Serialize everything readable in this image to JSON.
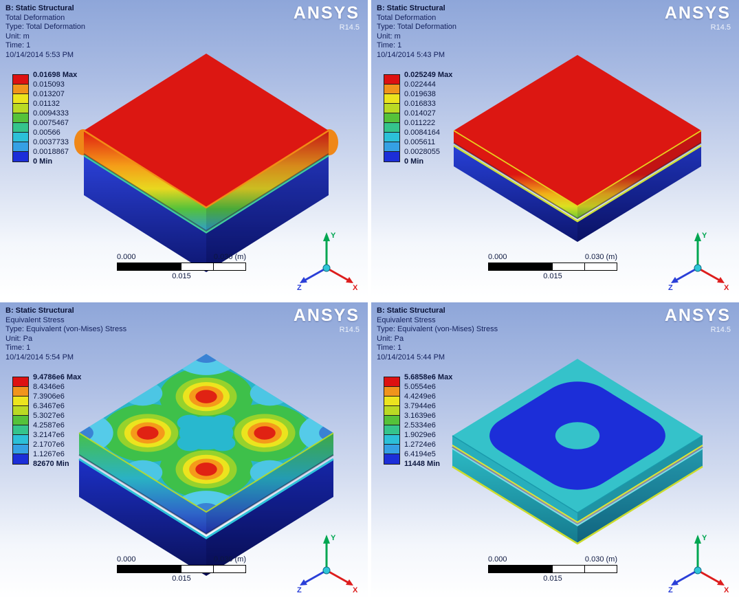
{
  "logo": {
    "brand": "ANSYS",
    "version": "R14.5"
  },
  "legend_colors": [
    "#dd1111",
    "#f0941c",
    "#ece41e",
    "#bada24",
    "#55c23a",
    "#35c48c",
    "#2cc0d8",
    "#35a0e4",
    "#1c2ed8"
  ],
  "triad": {
    "x_label": "X",
    "y_label": "Y",
    "z_label": "Z",
    "x_color": "#dd1d1d",
    "y_color": "#00a651",
    "z_color": "#2a3fd8"
  },
  "panels": [
    {
      "header": {
        "line1": "B: Static Structural",
        "line2": "Total Deformation",
        "line3": "Type: Total Deformation",
        "line4": "Unit: m",
        "line5": "Time: 1",
        "line6": "10/14/2014 5:53 PM"
      },
      "legend_labels": [
        "0.01698 Max",
        "0.015093",
        "0.013207",
        "0.01132",
        "0.0094333",
        "0.0075467",
        "0.00566",
        "0.0037733",
        "0.0018867",
        "0 Min"
      ],
      "scale": {
        "left": "0.000",
        "right": "0.030 (m)",
        "center": "0.015"
      }
    },
    {
      "header": {
        "line1": "B: Static Structural",
        "line2": "Total Deformation",
        "line3": "Type: Total Deformation",
        "line4": "Unit: m",
        "line5": "Time: 1",
        "line6": "10/14/2014 5:43 PM"
      },
      "legend_labels": [
        "0.025249 Max",
        "0.022444",
        "0.019638",
        "0.016833",
        "0.014027",
        "0.011222",
        "0.0084164",
        "0.005611",
        "0.0028055",
        "0 Min"
      ],
      "scale": {
        "left": "0.000",
        "right": "0.030 (m)",
        "center": "0.015"
      }
    },
    {
      "header": {
        "line1": "B: Static Structural",
        "line2": "Equivalent Stress",
        "line3": "Type: Equivalent (von-Mises) Stress",
        "line4": "Unit: Pa",
        "line5": "Time: 1",
        "line6": "10/14/2014 5:54 PM"
      },
      "legend_labels": [
        "9.4786e6 Max",
        "8.4346e6",
        "7.3906e6",
        "6.3467e6",
        "5.3027e6",
        "4.2587e6",
        "3.2147e6",
        "2.1707e6",
        "1.1267e6",
        "82670 Min"
      ],
      "scale": {
        "left": "0.000",
        "right": "0.030 (m)",
        "center": "0.015"
      }
    },
    {
      "header": {
        "line1": "B: Static Structural",
        "line2": "Equivalent Stress",
        "line3": "Type: Equivalent (von-Mises) Stress",
        "line4": "Unit: Pa",
        "line5": "Time: 1",
        "line6": "10/14/2014 5:44 PM"
      },
      "legend_labels": [
        "5.6858e6 Max",
        "5.0554e6",
        "4.4249e6",
        "3.7944e6",
        "3.1639e6",
        "2.5334e6",
        "1.9029e6",
        "1.2724e6",
        "6.4194e5",
        "11448 Min"
      ],
      "scale": {
        "left": "0.000",
        "right": "0.030 (m)",
        "center": "0.015"
      }
    }
  ]
}
